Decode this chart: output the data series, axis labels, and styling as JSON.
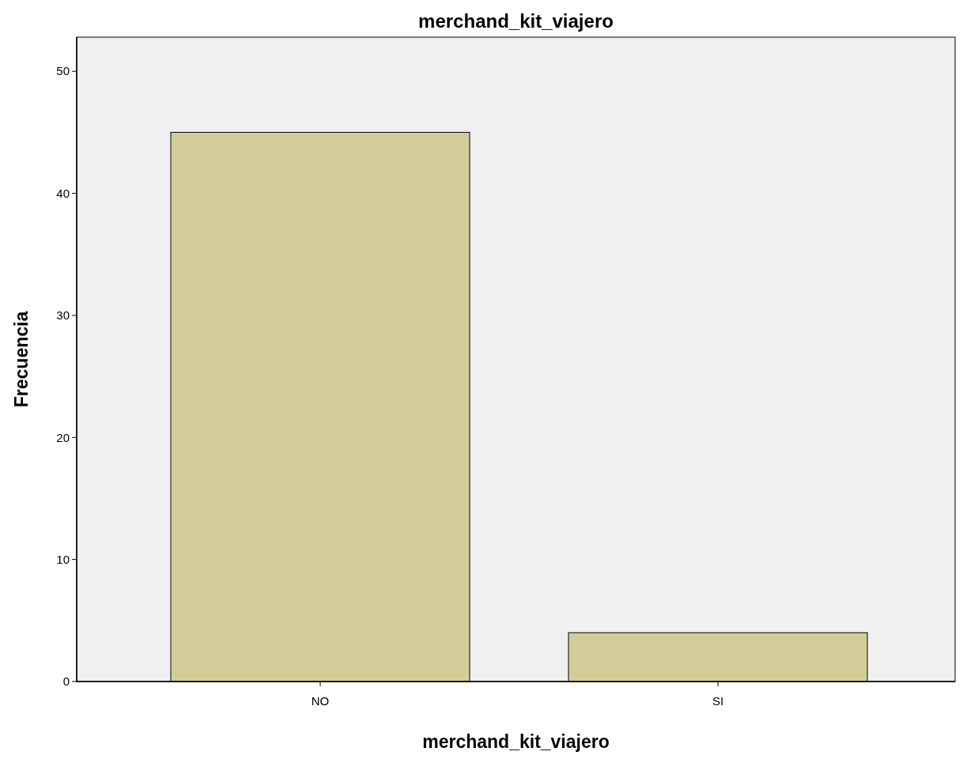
{
  "chart_data": {
    "type": "bar",
    "title": "merchand_kit_viajero",
    "xlabel": "merchand_kit_viajero",
    "ylabel": "Frecuencia",
    "categories": [
      "NO",
      "SI"
    ],
    "values": [
      45,
      4
    ],
    "color": "#d3ce99",
    "ylim": [
      0,
      52.8
    ],
    "yticks": [
      0,
      10,
      20,
      30,
      40,
      50
    ],
    "grid": false
  }
}
